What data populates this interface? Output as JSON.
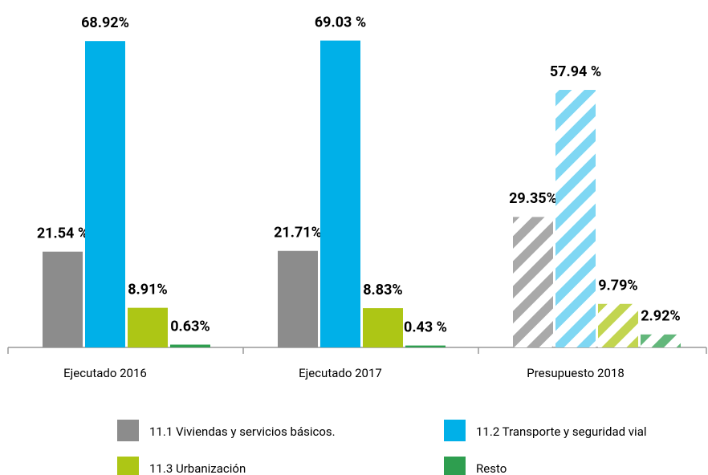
{
  "chart_data": {
    "type": "bar",
    "categories": [
      "Ejecutado 2016",
      "Ejecutado 2017",
      "Presupuesto 2018"
    ],
    "hatched": [
      false,
      false,
      true
    ],
    "series": [
      {
        "name": "11.1 Viviendas y servicios básicos.",
        "color": "#8c8c8c",
        "values": [
          21.54,
          21.71,
          29.35
        ],
        "value_labels": [
          "21.54 %",
          "21.71%",
          "29.35%"
        ]
      },
      {
        "name": "11.2 Transporte y seguridad vial",
        "color": "#00b0e8",
        "values": [
          68.92,
          69.03,
          57.94
        ],
        "value_labels": [
          "68.92%",
          "69.03 %",
          "57.94 %"
        ]
      },
      {
        "name": "11.3  Urbanización",
        "color": "#adc615",
        "values": [
          8.91,
          8.83,
          9.79
        ],
        "value_labels": [
          "8.91%",
          "8.83%",
          "9.79%"
        ]
      },
      {
        "name": "Resto",
        "color": "#2e9e4f",
        "values": [
          0.63,
          0.43,
          2.92
        ],
        "value_labels": [
          "0.63%",
          "0.43 %",
          "2.92%"
        ]
      }
    ],
    "ylim": [
      0,
      75
    ]
  }
}
